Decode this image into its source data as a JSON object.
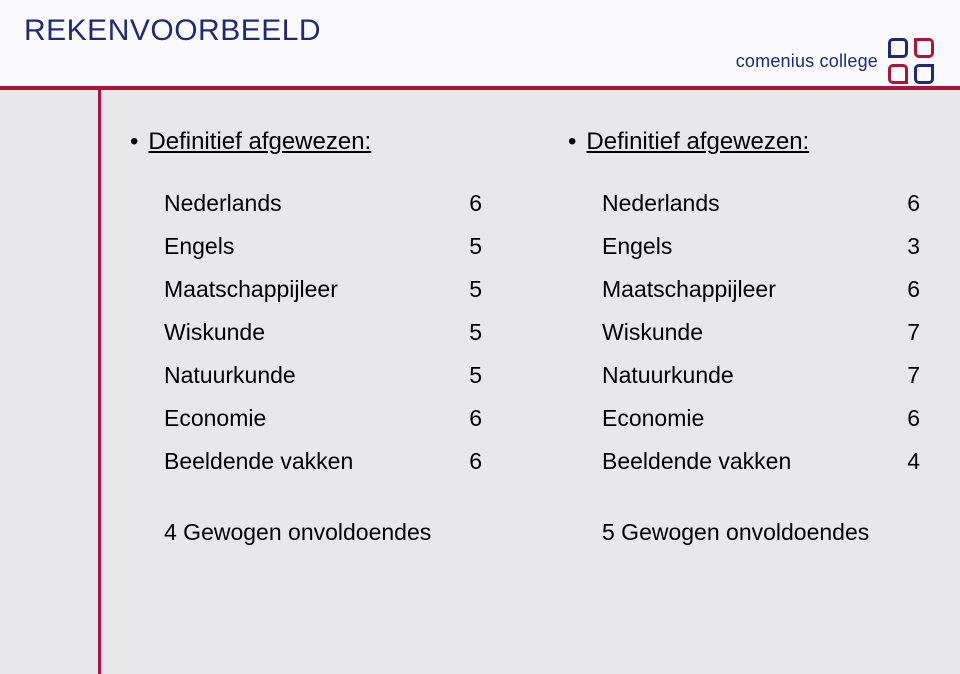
{
  "colors": {
    "title": "#1e2a78",
    "accent": "#b0133a",
    "logo_text": "#1e2a78",
    "header_bg": "#fafafc",
    "body_bg": "#e8e8ea"
  },
  "header": {
    "title": "REKENVOORBEELD",
    "logo_text": "comenius college"
  },
  "left": {
    "heading": "Definitief afgewezen:",
    "rows": [
      {
        "label": "Nederlands",
        "val": "6"
      },
      {
        "label": "Engels",
        "val": "5"
      },
      {
        "label": "Maatschappijleer",
        "val": "5"
      },
      {
        "label": "Wiskunde",
        "val": "5"
      },
      {
        "label": "Natuurkunde",
        "val": "5"
      },
      {
        "label": "Economie",
        "val": "6"
      },
      {
        "label": "Beeldende vakken",
        "val": "6"
      }
    ],
    "footer": "4 Gewogen onvoldoendes"
  },
  "right": {
    "heading": "Definitief afgewezen:",
    "rows": [
      {
        "label": "Nederlands",
        "val": "6"
      },
      {
        "label": "Engels",
        "val": "3"
      },
      {
        "label": "Maatschappijleer",
        "val": "6"
      },
      {
        "label": "Wiskunde",
        "val": "7"
      },
      {
        "label": "Natuurkunde",
        "val": "7"
      },
      {
        "label": "Economie",
        "val": "6"
      },
      {
        "label": "Beeldende vakken",
        "val": "4"
      }
    ],
    "footer": "5 Gewogen onvoldoendes"
  }
}
